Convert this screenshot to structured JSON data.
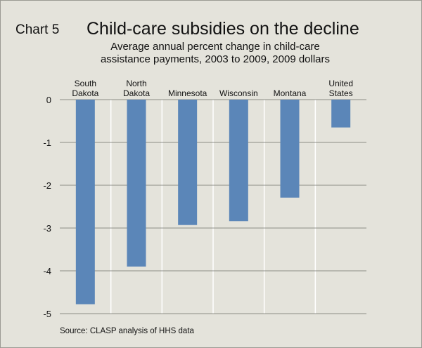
{
  "header": {
    "chart_label": "Chart 5",
    "title": "Child-care subsidies on the decline",
    "subtitle": "Average annual percent change in child-care assistance payments, 2003 to 2009, 2009 dollars"
  },
  "footer": {
    "source": "Source: CLASP analysis of HHS data"
  },
  "colors": {
    "bar": "#5b86b8",
    "background": "#e4e3db",
    "gridline": "#6f6f6a",
    "separator": "#ffffff"
  },
  "chart_data": {
    "type": "bar",
    "categories": [
      "South Dakota",
      "North Dakota",
      "Minnesota",
      "Wisconsin",
      "Montana",
      "United States"
    ],
    "category_label_lines": [
      [
        "South",
        "Dakota"
      ],
      [
        "North",
        "Dakota"
      ],
      [
        "Minnesota"
      ],
      [
        "Wisconsin"
      ],
      [
        "Montana"
      ],
      [
        "United",
        "States"
      ]
    ],
    "values": [
      -4.78,
      -3.9,
      -2.93,
      -2.84,
      -2.29,
      -0.65
    ],
    "ylim": [
      -5,
      0
    ],
    "yticks": [
      0,
      -1,
      -2,
      -3,
      -4,
      -5
    ],
    "ytick_labels": [
      "0",
      "-1",
      "-2",
      "-3",
      "-4",
      "-5"
    ],
    "title": "Child-care subsidies on the decline",
    "xlabel": "",
    "ylabel": "",
    "grid": true
  }
}
